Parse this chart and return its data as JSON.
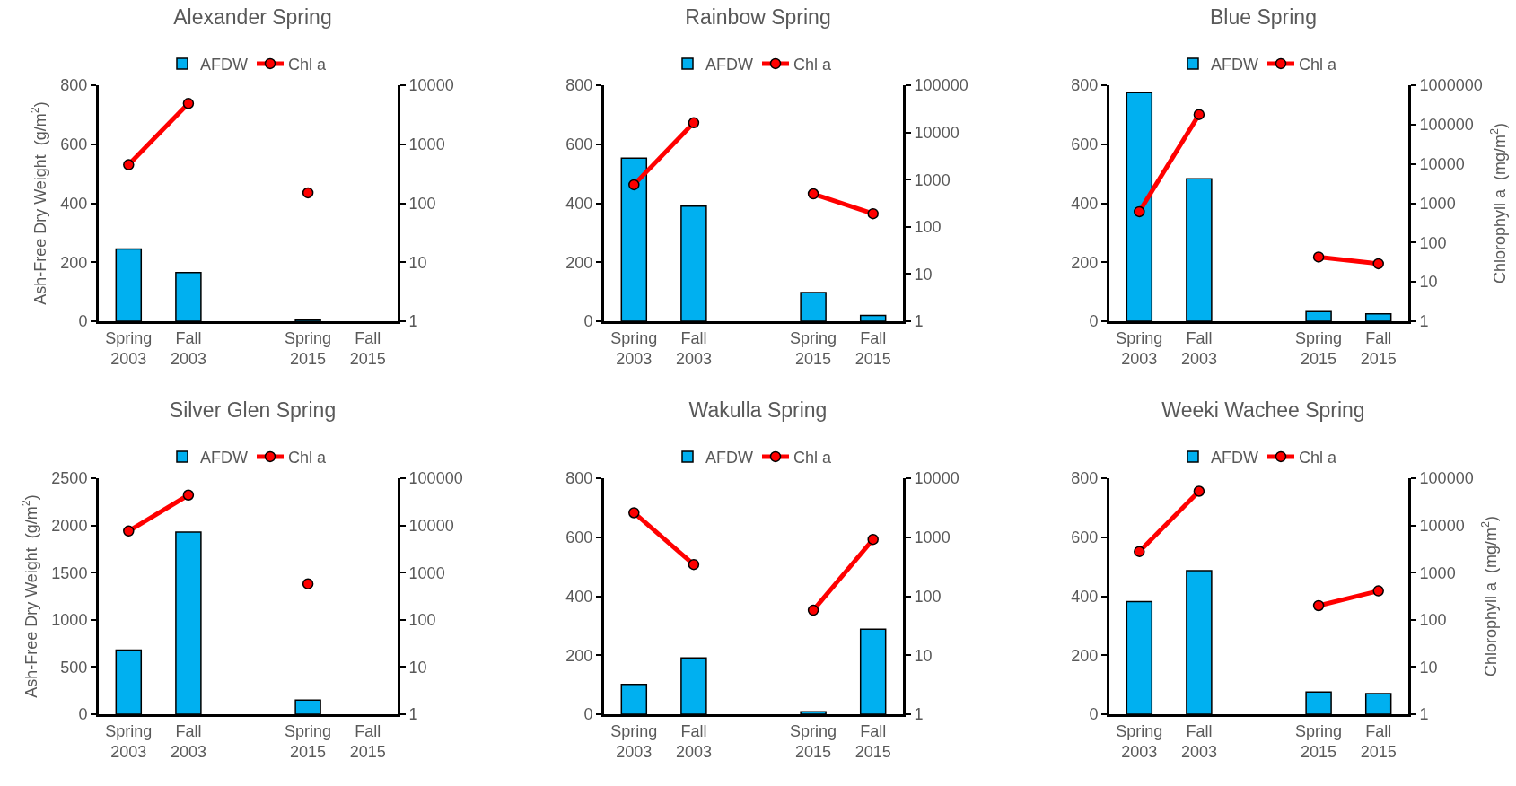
{
  "chart_data": [
    {
      "type": "bar",
      "title": "Alexander Spring",
      "ylabel": "Ash-Free Dry Weight  (g/m$^{2}$)",
      "categories": [
        "Spring\n2003",
        "Fall\n2003",
        null,
        "Spring\n2015",
        "Fall\n2015"
      ],
      "legend": "top",
      "ylim": [
        0,
        800
      ],
      "yticks": [
        0,
        200,
        400,
        600,
        800
      ],
      "y2lim": [
        1,
        10000
      ],
      "y2ticks": [
        1,
        10,
        100,
        1000,
        10000
      ],
      "log": "y2",
      "series": [
        {
          "name": "AFDW",
          "color": "#00b0f0",
          "values": [
            245,
            165,
            null,
            5,
            null
          ]
        },
        {
          "name": "Chl a",
          "type": "line",
          "axis": "y2",
          "marker": "circle",
          "color": "#ff0000",
          "values": [
            450,
            4900,
            null,
            150,
            null
          ]
        }
      ]
    },
    {
      "type": "bar",
      "title": "Rainbow Spring",
      "categories": [
        "Spring\n2003",
        "Fall\n2003",
        null,
        "Spring\n2015",
        "Fall\n2015"
      ],
      "legend": "top",
      "ylim": [
        0,
        800
      ],
      "yticks": [
        0,
        200,
        400,
        600,
        800
      ],
      "y2lim": [
        1,
        100000
      ],
      "y2ticks": [
        1,
        10,
        100,
        1000,
        10000,
        100000
      ],
      "log": "y2",
      "series": [
        {
          "name": "AFDW",
          "color": "#00b0f0",
          "values": [
            553,
            390,
            null,
            97,
            20
          ]
        },
        {
          "name": "Chl a",
          "type": "line",
          "axis": "y2",
          "marker": "circle",
          "color": "#ff0000",
          "values": [
            780,
            16000,
            null,
            500,
            190
          ]
        }
      ]
    },
    {
      "type": "bar",
      "title": "Blue Spring",
      "y2label": "Chlorophyll a  (mg/m$^{2}$)",
      "categories": [
        "Spring\n2003",
        "Fall\n2003",
        null,
        "Spring\n2015",
        "Fall\n2015"
      ],
      "legend": "top",
      "ylim": [
        0,
        800
      ],
      "yticks": [
        0,
        200,
        400,
        600,
        800
      ],
      "y2lim": [
        1,
        1000000
      ],
      "y2ticks": [
        1,
        10,
        100,
        1000,
        10000,
        100000,
        1000000
      ],
      "log": "y2",
      "series": [
        {
          "name": "AFDW",
          "color": "#00b0f0",
          "values": [
            775,
            483,
            null,
            33,
            25
          ]
        },
        {
          "name": "Chl a",
          "type": "line",
          "axis": "y2",
          "marker": "circle",
          "color": "#ff0000",
          "values": [
            610,
            180000,
            null,
            43,
            29
          ]
        }
      ]
    },
    {
      "type": "bar",
      "title": "Silver Glen Spring",
      "ylabel": "Ash-Free Dry Weight  (g/m$^{2}$)",
      "categories": [
        "Spring\n2003",
        "Fall\n2003",
        null,
        "Spring\n2015",
        "Fall\n2015"
      ],
      "legend": "top",
      "ylim": [
        0,
        2500
      ],
      "yticks": [
        0,
        500,
        1000,
        1500,
        2000,
        2500
      ],
      "y2lim": [
        1,
        100000
      ],
      "y2ticks": [
        1,
        10,
        100,
        1000,
        10000,
        100000
      ],
      "log": "y2",
      "series": [
        {
          "name": "AFDW",
          "color": "#00b0f0",
          "values": [
            680,
            1930,
            null,
            150,
            null
          ]
        },
        {
          "name": "Chl a",
          "type": "line",
          "axis": "y2",
          "marker": "circle",
          "color": "#ff0000",
          "values": [
            7600,
            44000,
            null,
            580,
            null
          ]
        }
      ]
    },
    {
      "type": "bar",
      "title": "Wakulla Spring",
      "categories": [
        "Spring\n2003",
        "Fall\n2003",
        null,
        "Spring\n2015",
        "Fall\n2015"
      ],
      "legend": "top",
      "ylim": [
        0,
        800
      ],
      "yticks": [
        0,
        200,
        400,
        600,
        800
      ],
      "y2lim": [
        1,
        10000
      ],
      "y2ticks": [
        1,
        10,
        100,
        1000,
        10000
      ],
      "log": "y2",
      "series": [
        {
          "name": "AFDW",
          "color": "#00b0f0",
          "values": [
            101,
            191,
            null,
            8,
            288
          ]
        },
        {
          "name": "Chl a",
          "type": "line",
          "axis": "y2",
          "marker": "circle",
          "color": "#ff0000",
          "values": [
            2600,
            345,
            null,
            58,
            920
          ]
        }
      ]
    },
    {
      "type": "bar",
      "title": "Weeki Wachee Spring",
      "y2label": "Chlorophyll a  (mg/m$^{2}$)",
      "categories": [
        "Spring\n2003",
        "Fall\n2003",
        null,
        "Spring\n2015",
        "Fall\n2015"
      ],
      "legend": "top",
      "ylim": [
        0,
        800
      ],
      "yticks": [
        0,
        200,
        400,
        600,
        800
      ],
      "y2lim": [
        1,
        100000
      ],
      "y2ticks": [
        1,
        10,
        100,
        1000,
        10000,
        100000
      ],
      "log": "y2",
      "series": [
        {
          "name": "AFDW",
          "color": "#00b0f0",
          "values": [
            382,
            487,
            null,
            75,
            70
          ]
        },
        {
          "name": "Chl a",
          "type": "line",
          "axis": "y2",
          "marker": "circle",
          "color": "#ff0000",
          "values": [
            2800,
            53000,
            null,
            200,
            410
          ]
        }
      ]
    }
  ]
}
